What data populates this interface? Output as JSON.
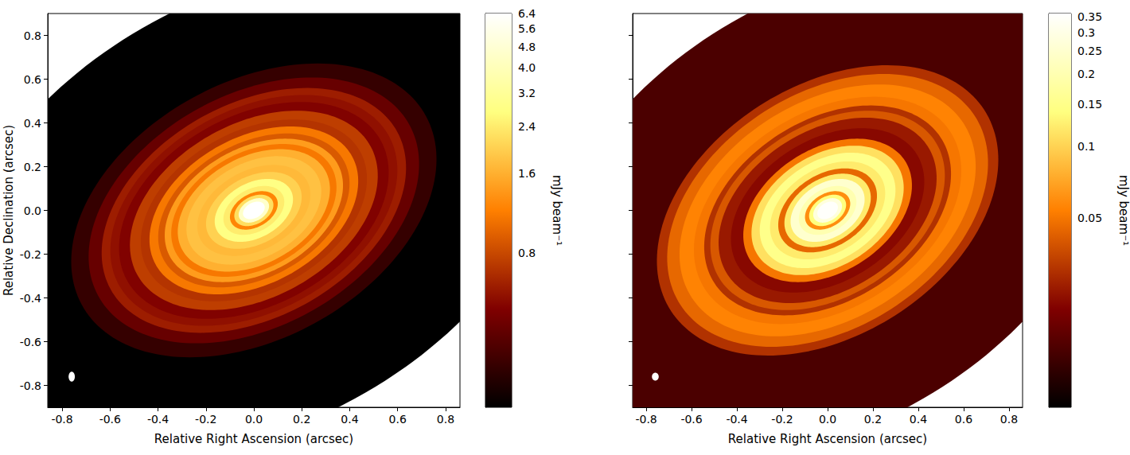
{
  "chart_data": [
    {
      "type": "heatmap",
      "xlabel": "Relative Right Ascension (arcsec)",
      "ylabel": "Relative Declination (arcsec)",
      "xlim": [
        -0.86,
        0.86
      ],
      "ylim": [
        -0.9,
        0.9
      ],
      "xticks": [
        -0.8,
        -0.6,
        -0.4,
        -0.2,
        {
          "value": 0,
          "label": "0.0"
        },
        0.2,
        0.4,
        0.6,
        0.8
      ],
      "yticks": [
        -0.8,
        -0.6,
        -0.4,
        -0.2,
        {
          "value": 0,
          "label": "0.0"
        },
        0.2,
        0.4,
        0.6,
        0.8
      ],
      "disk": {
        "major_axis_angle": 35,
        "axis_ratio": 0.68
      },
      "rings": {
        "radius": [
          0.05,
          0.07,
          0.09,
          0.11,
          0.14,
          0.18,
          0.22,
          0.26,
          0.31,
          0.35,
          0.38,
          0.41,
          0.44,
          0.48,
          0.52,
          0.57,
          0.62,
          0.66,
          0.7,
          0.76,
          0.84,
          1.4
        ],
        "values": [
          6.4,
          4.5,
          2.2,
          1.2,
          2.4,
          2.8,
          2.0,
          1.7,
          1.8,
          1.6,
          1.1,
          1.4,
          0.9,
          1.1,
          0.7,
          0.75,
          0.5,
          0.55,
          0.6,
          0.42,
          0.3,
          0.15
        ]
      },
      "beam": {
        "x": -0.76,
        "y": -0.76,
        "major": 0.045,
        "minor": 0.026
      },
      "colorbar": {
        "label": "mJy beam⁻¹",
        "log": true,
        "range": [
          0.21,
          6.4
        ],
        "ticks": [
          0.8,
          1.6,
          2.4,
          3.2,
          {
            "value": 4,
            "label": "4.0"
          },
          4.8,
          5.6,
          6.4
        ]
      }
    },
    {
      "type": "heatmap",
      "xlabel": "Relative Right Ascension (arcsec)",
      "xlim": [
        -0.86,
        0.86
      ],
      "ylim": [
        -0.9,
        0.9
      ],
      "xticks": [
        -0.8,
        -0.6,
        -0.4,
        -0.2,
        {
          "value": 0,
          "label": "0.0"
        },
        0.2,
        0.4,
        0.6,
        0.8
      ],
      "yticks": [
        -0.8,
        -0.6,
        -0.4,
        -0.2,
        {
          "value": 0,
          "label": "0.0"
        },
        0.2,
        0.4,
        0.6,
        0.8
      ],
      "tick_labels": "x",
      "disk": {
        "major_axis_angle": 35,
        "axis_ratio": 0.68
      },
      "rings": {
        "radius": [
          0.05,
          0.07,
          0.09,
          0.11,
          0.14,
          0.18,
          0.21,
          0.24,
          0.28,
          0.33,
          0.37,
          0.41,
          0.47,
          0.53,
          0.57,
          0.6,
          0.65,
          0.72,
          0.78,
          0.83,
          1.4
        ],
        "values": [
          0.35,
          0.28,
          0.14,
          0.06,
          0.2,
          0.25,
          0.12,
          0.045,
          0.12,
          0.15,
          0.11,
          0.05,
          0.022,
          0.025,
          0.04,
          0.03,
          0.05,
          0.055,
          0.045,
          0.03,
          0.014
        ]
      },
      "beam": {
        "x": -0.76,
        "y": -0.76,
        "major": 0.036,
        "minor": 0.03
      },
      "colorbar": {
        "label": "mJy beam⁻¹",
        "log": true,
        "range": [
          0.008,
          0.36
        ],
        "ticks": [
          0.05,
          0.1,
          0.15,
          0.2,
          0.25,
          0.3,
          0.35
        ]
      }
    }
  ]
}
